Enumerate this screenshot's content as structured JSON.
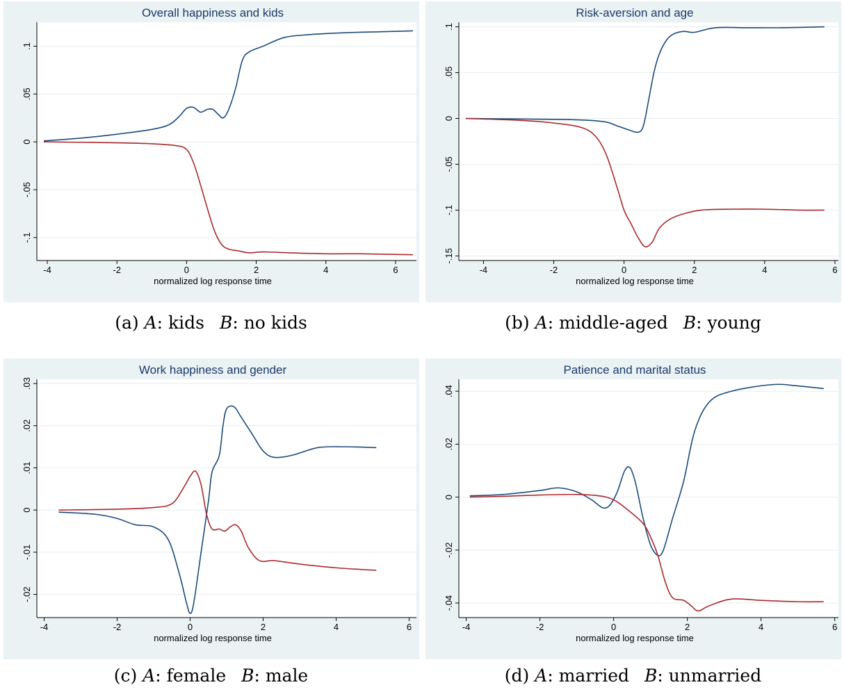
{
  "colors": {
    "panel_bg": "#eaf2f3",
    "series_a": "#1a4a7a",
    "series_b": "#a8292d",
    "title": "#1a3a6b"
  },
  "x_axis_label": "normalized log response time",
  "captions": [
    {
      "prefix": "(a)",
      "a_var": "A",
      "a_val": "kids",
      "b_var": "B",
      "b_val": "no kids"
    },
    {
      "prefix": "(b)",
      "a_var": "A",
      "a_val": "middle-aged",
      "b_var": "B",
      "b_val": "young"
    },
    {
      "prefix": "(c)",
      "a_var": "A",
      "a_val": "female",
      "b_var": "B",
      "b_val": "male"
    },
    {
      "prefix": "(d)",
      "a_var": "A",
      "a_val": "married",
      "b_var": "B",
      "b_val": "unmarried"
    }
  ],
  "chart_data": [
    {
      "type": "line",
      "title": "Overall happiness and kids",
      "xlabel": "normalized log response time",
      "xlim": [
        -4.3,
        6.6
      ],
      "ylim": [
        -0.124,
        0.125
      ],
      "xticks": [
        -4,
        -2,
        0,
        2,
        4,
        6
      ],
      "xtick_labels": [
        "-4",
        "-2",
        "0",
        "2",
        "4",
        "6"
      ],
      "yticks": [
        0.1,
        0.05,
        0,
        -0.05,
        -0.1
      ],
      "ytick_labels": [
        ".1",
        ".05",
        "0",
        "-.05",
        "-.1"
      ],
      "series": [
        {
          "color": "#1a4a7a",
          "points": [
            [
              -4.1,
              0.001
            ],
            [
              -3,
              0.004
            ],
            [
              -2,
              0.008
            ],
            [
              -1,
              0.013
            ],
            [
              -0.5,
              0.018
            ],
            [
              -0.2,
              0.027
            ],
            [
              0,
              0.035
            ],
            [
              0.2,
              0.036
            ],
            [
              0.4,
              0.031
            ],
            [
              0.6,
              0.034
            ],
            [
              0.75,
              0.034
            ],
            [
              0.9,
              0.029
            ],
            [
              1.05,
              0.025
            ],
            [
              1.2,
              0.033
            ],
            [
              1.4,
              0.055
            ],
            [
              1.6,
              0.085
            ],
            [
              1.8,
              0.094
            ],
            [
              2.2,
              0.1
            ],
            [
              2.8,
              0.109
            ],
            [
              3.5,
              0.112
            ],
            [
              4.5,
              0.114
            ],
            [
              5.5,
              0.115
            ],
            [
              6.5,
              0.116
            ]
          ]
        },
        {
          "color": "#a8292d",
          "points": [
            [
              -4.1,
              0
            ],
            [
              -2,
              -0.001
            ],
            [
              -1,
              -0.002
            ],
            [
              -0.3,
              -0.004
            ],
            [
              0,
              -0.008
            ],
            [
              0.2,
              -0.022
            ],
            [
              0.4,
              -0.045
            ],
            [
              0.6,
              -0.07
            ],
            [
              0.8,
              -0.093
            ],
            [
              1,
              -0.107
            ],
            [
              1.2,
              -0.112
            ],
            [
              1.5,
              -0.114
            ],
            [
              1.8,
              -0.116
            ],
            [
              2.2,
              -0.115
            ],
            [
              3,
              -0.116
            ],
            [
              4,
              -0.117
            ],
            [
              5,
              -0.117
            ],
            [
              6.5,
              -0.118
            ]
          ]
        }
      ]
    },
    {
      "type": "line",
      "title": "Risk-aversion and age",
      "xlabel": "normalized log response time",
      "xlim": [
        -4.7,
        6.1
      ],
      "ylim": [
        -0.155,
        0.105
      ],
      "xticks": [
        -4,
        -2,
        0,
        2,
        4,
        6
      ],
      "xtick_labels": [
        "-4",
        "-2",
        "0",
        "2",
        "4",
        "6"
      ],
      "yticks": [
        0.1,
        0.05,
        0,
        -0.05,
        -0.1,
        -0.15
      ],
      "ytick_labels": [
        ".1",
        ".05",
        "0",
        "-.05",
        "-.1",
        "-.15"
      ],
      "series": [
        {
          "color": "#1a4a7a",
          "points": [
            [
              -4.5,
              0
            ],
            [
              -2,
              -0.001
            ],
            [
              -1,
              -0.002
            ],
            [
              -0.5,
              -0.004
            ],
            [
              -0.2,
              -0.008
            ],
            [
              0.1,
              -0.012
            ],
            [
              0.4,
              -0.015
            ],
            [
              0.55,
              -0.008
            ],
            [
              0.7,
              0.02
            ],
            [
              0.85,
              0.05
            ],
            [
              1,
              0.07
            ],
            [
              1.2,
              0.085
            ],
            [
              1.4,
              0.092
            ],
            [
              1.7,
              0.095
            ],
            [
              2,
              0.094
            ],
            [
              2.6,
              0.099
            ],
            [
              3.5,
              0.099
            ],
            [
              4.5,
              0.099
            ],
            [
              5.7,
              0.1
            ]
          ]
        },
        {
          "color": "#a8292d",
          "points": [
            [
              -4.5,
              0
            ],
            [
              -3,
              -0.002
            ],
            [
              -2,
              -0.005
            ],
            [
              -1.2,
              -0.01
            ],
            [
              -0.8,
              -0.02
            ],
            [
              -0.5,
              -0.04
            ],
            [
              -0.2,
              -0.075
            ],
            [
              0,
              -0.1
            ],
            [
              0.2,
              -0.115
            ],
            [
              0.4,
              -0.13
            ],
            [
              0.6,
              -0.14
            ],
            [
              0.8,
              -0.135
            ],
            [
              1,
              -0.12
            ],
            [
              1.3,
              -0.11
            ],
            [
              1.7,
              -0.104
            ],
            [
              2.2,
              -0.1
            ],
            [
              3,
              -0.099
            ],
            [
              4,
              -0.099
            ],
            [
              5,
              -0.1
            ],
            [
              5.7,
              -0.1
            ]
          ]
        }
      ]
    },
    {
      "type": "line",
      "title": "Work happiness and gender",
      "xlabel": "normalized log response time",
      "xlim": [
        -4.2,
        6.2
      ],
      "ylim": [
        -0.0255,
        0.031
      ],
      "xticks": [
        -4,
        -2,
        0,
        2,
        4,
        6
      ],
      "xtick_labels": [
        "-4",
        "-2",
        "0",
        "2",
        "4",
        "6"
      ],
      "yticks": [
        0.03,
        0.02,
        0.01,
        0,
        -0.01,
        -0.02
      ],
      "ytick_labels": [
        ".03",
        ".02",
        ".01",
        "0",
        "-.01",
        "-.02"
      ],
      "series": [
        {
          "color": "#1a4a7a",
          "points": [
            [
              -3.6,
              -0.0005
            ],
            [
              -2.6,
              -0.001
            ],
            [
              -2,
              -0.002
            ],
            [
              -1.5,
              -0.0035
            ],
            [
              -1,
              -0.004
            ],
            [
              -0.6,
              -0.007
            ],
            [
              -0.3,
              -0.015
            ],
            [
              -0.1,
              -0.022
            ],
            [
              0,
              -0.0245
            ],
            [
              0.1,
              -0.022
            ],
            [
              0.3,
              -0.01
            ],
            [
              0.5,
              0.002
            ],
            [
              0.6,
              0.009
            ],
            [
              0.8,
              0.013
            ],
            [
              0.9,
              0.02
            ],
            [
              1,
              0.024
            ],
            [
              1.2,
              0.0245
            ],
            [
              1.4,
              0.022
            ],
            [
              1.7,
              0.018
            ],
            [
              2,
              0.014
            ],
            [
              2.3,
              0.0125
            ],
            [
              2.8,
              0.013
            ],
            [
              3.5,
              0.0148
            ],
            [
              4.2,
              0.015
            ],
            [
              5.1,
              0.0148
            ]
          ]
        },
        {
          "color": "#a8292d",
          "points": [
            [
              -3.6,
              0
            ],
            [
              -2,
              0.0002
            ],
            [
              -1,
              0.0006
            ],
            [
              -0.5,
              0.0015
            ],
            [
              -0.2,
              0.005
            ],
            [
              0,
              0.008
            ],
            [
              0.15,
              0.0092
            ],
            [
              0.3,
              0.006
            ],
            [
              0.45,
              -0.001
            ],
            [
              0.6,
              -0.0045
            ],
            [
              0.8,
              -0.0045
            ],
            [
              0.95,
              -0.005
            ],
            [
              1.1,
              -0.004
            ],
            [
              1.25,
              -0.0035
            ],
            [
              1.4,
              -0.005
            ],
            [
              1.6,
              -0.009
            ],
            [
              1.9,
              -0.012
            ],
            [
              2.3,
              -0.012
            ],
            [
              3,
              -0.0128
            ],
            [
              4,
              -0.0137
            ],
            [
              5.1,
              -0.0143
            ]
          ]
        }
      ]
    },
    {
      "type": "line",
      "title": "Patience and marital status",
      "xlabel": "normalized log response time",
      "xlim": [
        -4.2,
        6.1
      ],
      "ylim": [
        -0.0455,
        0.0445
      ],
      "xticks": [
        -4,
        -2,
        0,
        2,
        4,
        6
      ],
      "xtick_labels": [
        "-4",
        "-2",
        "0",
        "2",
        "4",
        "6"
      ],
      "yticks": [
        0.04,
        0.02,
        0,
        -0.02,
        -0.04
      ],
      "ytick_labels": [
        ".04",
        ".02",
        "0",
        "-.02",
        "-.04"
      ],
      "series": [
        {
          "color": "#1a4a7a",
          "points": [
            [
              -3.9,
              0.0005
            ],
            [
              -3,
              0.001
            ],
            [
              -2,
              0.0025
            ],
            [
              -1.5,
              0.0035
            ],
            [
              -1,
              0.002
            ],
            [
              -0.6,
              -0.001
            ],
            [
              -0.3,
              -0.004
            ],
            [
              -0.1,
              -0.003
            ],
            [
              0.1,
              0.002
            ],
            [
              0.3,
              0.01
            ],
            [
              0.45,
              0.011
            ],
            [
              0.6,
              0.005
            ],
            [
              0.8,
              -0.008
            ],
            [
              1,
              -0.018
            ],
            [
              1.2,
              -0.022
            ],
            [
              1.35,
              -0.02
            ],
            [
              1.6,
              -0.008
            ],
            [
              1.9,
              0.006
            ],
            [
              2.2,
              0.025
            ],
            [
              2.6,
              0.036
            ],
            [
              3.2,
              0.04
            ],
            [
              4.3,
              0.0425
            ],
            [
              5,
              0.042
            ],
            [
              5.7,
              0.041
            ]
          ]
        },
        {
          "color": "#a8292d",
          "points": [
            [
              -3.9,
              0
            ],
            [
              -3,
              0.0003
            ],
            [
              -2,
              0.0008
            ],
            [
              -1,
              0.001
            ],
            [
              -0.4,
              0.0005
            ],
            [
              0,
              -0.001
            ],
            [
              0.4,
              -0.005
            ],
            [
              0.8,
              -0.01
            ],
            [
              1,
              -0.015
            ],
            [
              1.2,
              -0.022
            ],
            [
              1.4,
              -0.032
            ],
            [
              1.6,
              -0.038
            ],
            [
              1.9,
              -0.039
            ],
            [
              2.1,
              -0.041
            ],
            [
              2.3,
              -0.043
            ],
            [
              2.6,
              -0.041
            ],
            [
              3.2,
              -0.0385
            ],
            [
              4,
              -0.039
            ],
            [
              5,
              -0.0395
            ],
            [
              5.7,
              -0.0395
            ]
          ]
        }
      ]
    }
  ]
}
